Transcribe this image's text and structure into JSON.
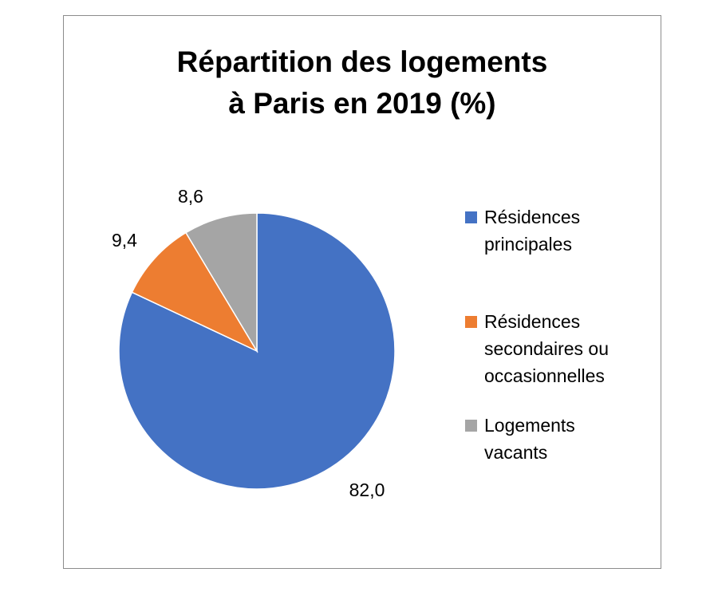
{
  "chart_data": {
    "type": "pie",
    "title_lines": [
      "Répartition des logements",
      "à Paris en 2019 (%)"
    ],
    "categories": [
      "Résidences principales",
      "Résidences secondaires ou occasionnelles",
      "Logements vacants"
    ],
    "values": [
      82.0,
      9.4,
      8.6
    ],
    "data_labels": [
      "82,0",
      "9,4",
      "8,6"
    ],
    "colors": [
      "#4472c4",
      "#ed7d31",
      "#a5a5a5"
    ],
    "legend_lines": [
      [
        "Résidences",
        "principales"
      ],
      [
        "Résidences",
        "secondaires ou",
        "occasionnelles"
      ],
      [
        "Logements",
        "vacants"
      ]
    ],
    "legend_position": "right",
    "start_angle": "12 o'clock",
    "direction": "clockwise"
  }
}
